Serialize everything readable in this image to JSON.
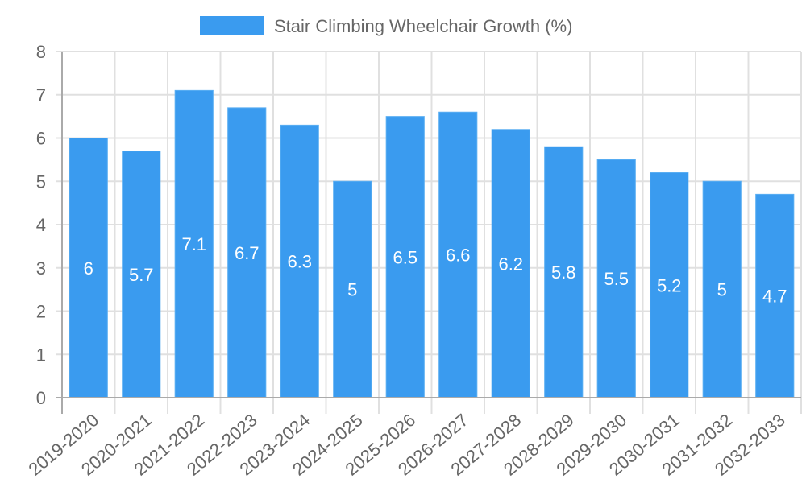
{
  "chart_data": {
    "type": "bar",
    "title": "",
    "legend": [
      {
        "label": "Stair Climbing Wheelchair Growth (%)",
        "color": "#3a9bef"
      }
    ],
    "legend_position": "top",
    "xlabel": "",
    "ylabel": "",
    "ylim": [
      0,
      8
    ],
    "yticks": [
      0,
      1,
      2,
      3,
      4,
      5,
      6,
      7,
      8
    ],
    "grid": true,
    "categories": [
      "2019-2020",
      "2020-2021",
      "2021-2022",
      "2022-2023",
      "2023-2024",
      "2024-2025",
      "2025-2026",
      "2026-2027",
      "2027-2028",
      "2028-2029",
      "2029-2030",
      "2030-2031",
      "2031-2032",
      "2032-2033"
    ],
    "series": [
      {
        "name": "Stair Climbing Wheelchair Growth (%)",
        "values": [
          6,
          5.7,
          7.1,
          6.7,
          6.3,
          5,
          6.5,
          6.6,
          6.2,
          5.8,
          5.5,
          5.2,
          5,
          4.7
        ],
        "color": "#3a9bef"
      }
    ],
    "data_labels": [
      "6",
      "5.7",
      "7.1",
      "6.7",
      "6.3",
      "5",
      "6.5",
      "6.6",
      "6.2",
      "5.8",
      "5.5",
      "5.2",
      "5",
      "4.7"
    ]
  },
  "legend": {
    "label": "Stair Climbing Wheelchair Growth (%)"
  }
}
